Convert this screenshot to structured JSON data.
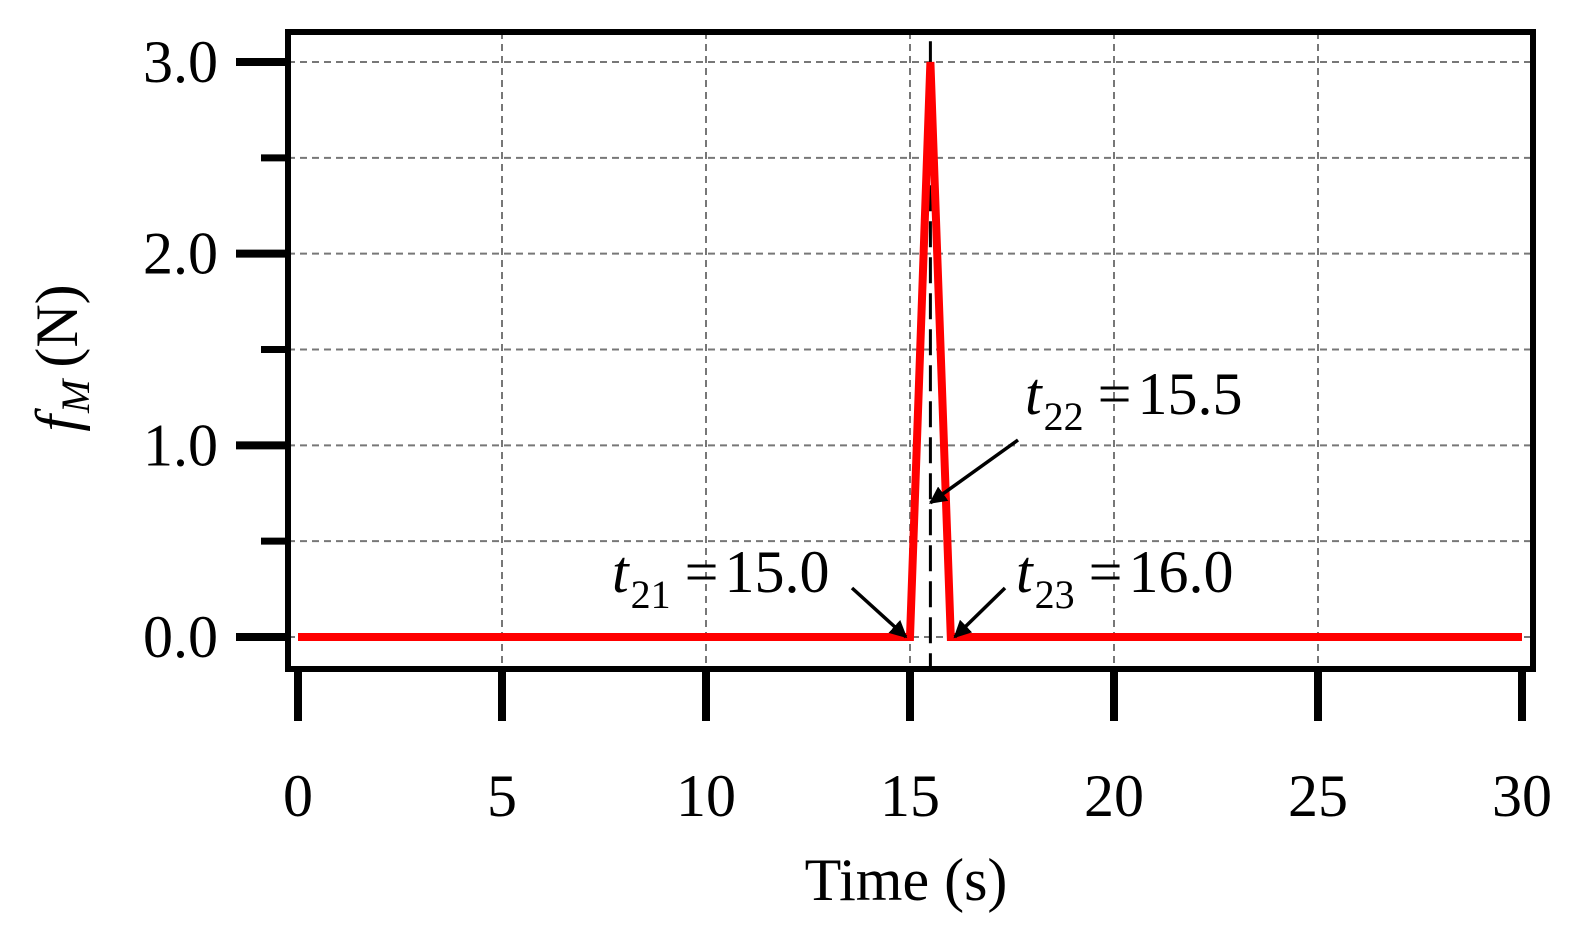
{
  "chart_data": {
    "type": "line",
    "xlabel": "Time (s)",
    "ylabel": {
      "symbol": "f",
      "subscript": "M",
      "unit": "(N)"
    },
    "xlim": [
      0,
      30
    ],
    "ylim": [
      -0.17,
      3.15
    ],
    "x_ticks": [
      0,
      5,
      10,
      15,
      20,
      25,
      30
    ],
    "x_tick_labels": [
      "0",
      "5",
      "10",
      "15",
      "20",
      "25",
      "30"
    ],
    "y_ticks": [
      0,
      1,
      2,
      3
    ],
    "y_tick_labels": [
      "0.0",
      "1.0",
      "2.0",
      "3.0"
    ],
    "y_minor_ticks": [
      0.5,
      1.5,
      2.5
    ],
    "grid": true,
    "series": [
      {
        "color": "#ff0000",
        "x": [
          0,
          15.0,
          15.5,
          16.0,
          30
        ],
        "y": [
          0,
          0,
          3.0,
          0,
          0
        ]
      }
    ],
    "reference_lines": [
      {
        "orientation": "vertical",
        "x": 15.5,
        "style": "dashed",
        "color": "#000000"
      }
    ],
    "annotations": [
      {
        "symbol": "t",
        "subscript": "21",
        "operator": "=",
        "value": "15.0",
        "point": [
          15.0,
          0
        ]
      },
      {
        "symbol": "t",
        "subscript": "22",
        "operator": "=",
        "value": "15.5",
        "point": [
          15.5,
          0.7
        ]
      },
      {
        "symbol": "t",
        "subscript": "23",
        "operator": "=",
        "value": "16.0",
        "point": [
          16.0,
          0
        ]
      }
    ]
  }
}
